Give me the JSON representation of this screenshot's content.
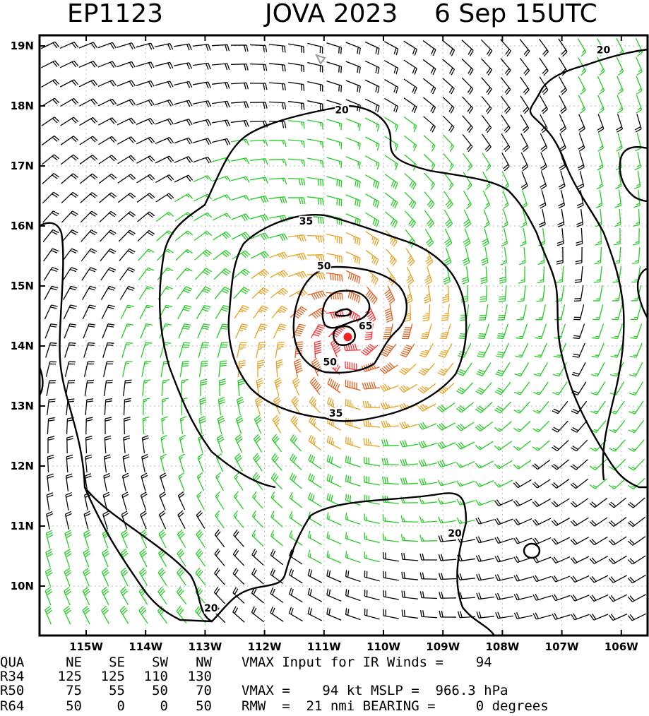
{
  "header": {
    "storm_id": "EP1123",
    "storm_name_year": "JOVA 2023",
    "datetime": "6 Sep 15UTC"
  },
  "map": {
    "lon_ticks": [
      "115W",
      "114W",
      "113W",
      "112W",
      "111W",
      "110W",
      "109W",
      "108W",
      "107W",
      "106W"
    ],
    "lat_ticks": [
      "19N",
      "18N",
      "17N",
      "16N",
      "15N",
      "14N",
      "13N",
      "12N",
      "11N",
      "10N"
    ],
    "contour_labels": [
      {
        "text": "20",
        "lon": -110.7,
        "lat": 17.9
      },
      {
        "text": "20",
        "lon": -106.3,
        "lat": 18.9
      },
      {
        "text": "20",
        "lon": -108.8,
        "lat": 10.85
      },
      {
        "text": "20",
        "lon": -112.9,
        "lat": 9.6
      },
      {
        "text": "35",
        "lon": -111.3,
        "lat": 16.05
      },
      {
        "text": "35",
        "lon": -110.8,
        "lat": 12.85
      },
      {
        "text": "50",
        "lon": -111.0,
        "lat": 15.3
      },
      {
        "text": "50",
        "lon": -110.9,
        "lat": 13.7
      },
      {
        "text": "65",
        "lon": -110.3,
        "lat": 14.3
      }
    ],
    "center": {
      "lon": -110.6,
      "lat": 14.15
    },
    "colors": {
      "barb_weak": "#000000",
      "barb_ts": "#22cc22",
      "barb_strong": "#e8a020",
      "barb_hurricane": "#e06020",
      "barb_core": "#ff3030",
      "center_dot": "#ee2222",
      "contour": "#000000"
    }
  },
  "table": {
    "header_row": [
      "QUA",
      "NE",
      "SE",
      "SW",
      "NW"
    ],
    "rows": [
      [
        "R34",
        "125",
        "125",
        "110",
        "130"
      ],
      [
        "R50",
        "75",
        "55",
        "50",
        "70"
      ],
      [
        "R64",
        "50",
        "0",
        "0",
        "50"
      ]
    ],
    "vmax_input_text": "VMAX Input for IR Winds =    94",
    "vmax_mslp_text": "VMAX =    94 kt MSLP =  966.3 hPa",
    "rmw_bearing_text": "RMW  =  21 nmi BEARING =     0 degrees"
  }
}
